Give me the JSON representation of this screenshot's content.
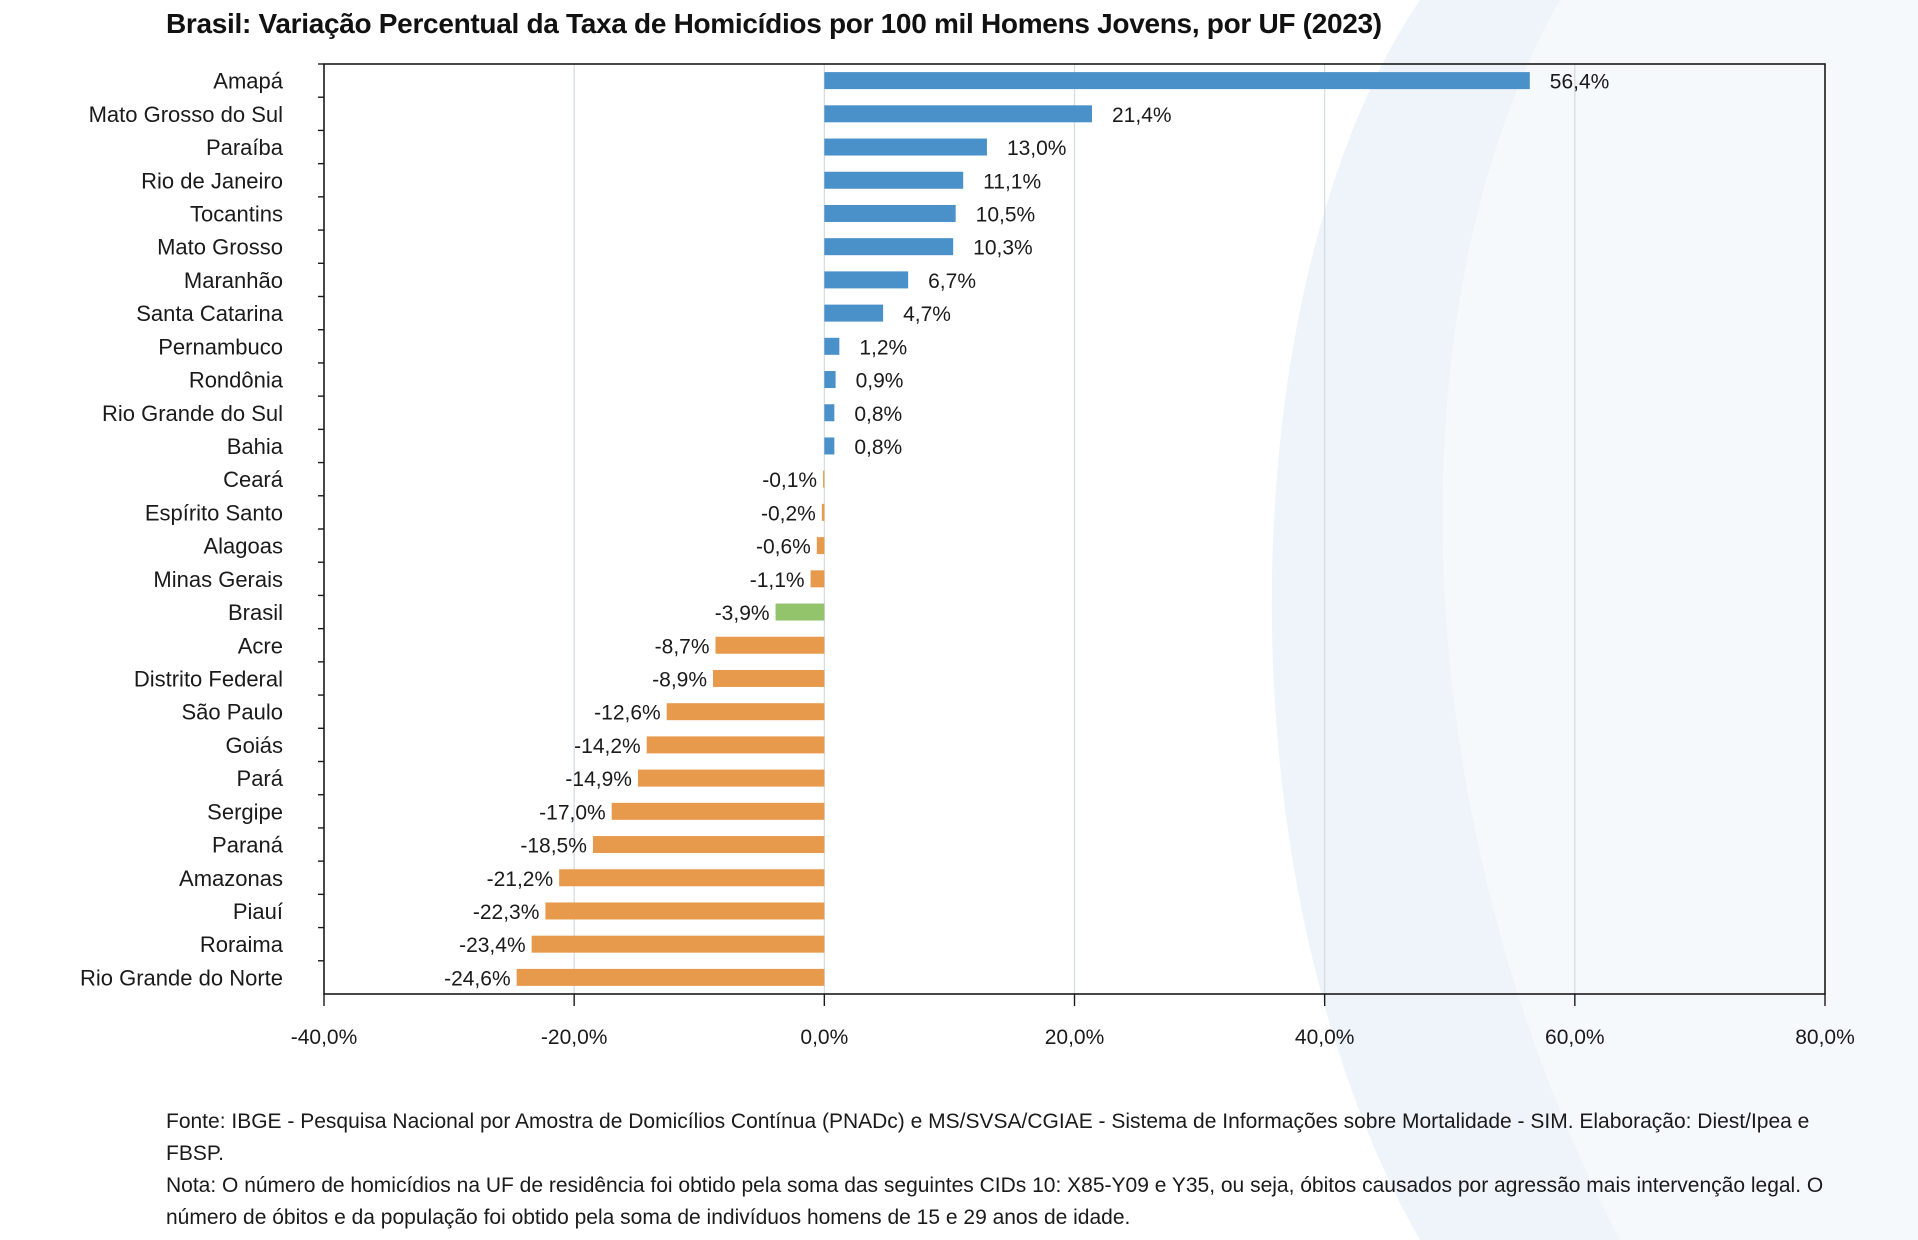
{
  "title": "Brasil: Variação Percentual da Taxa de Homicídios por 100 mil Homens Jovens, por UF (2023)",
  "chart_data": {
    "type": "bar",
    "orientation": "horizontal",
    "title": "Brasil: Variação Percentual da Taxa de Homicídios por 100 mil Homens Jovens, por UF (2023)",
    "xlabel": "",
    "ylabel": "",
    "xlim": [
      -40,
      80
    ],
    "xticks": [
      -40,
      -20,
      0,
      20,
      40,
      60,
      80
    ],
    "xtick_labels": [
      "-40,0%",
      "-20,0%",
      "0,0%",
      "20,0%",
      "40,0%",
      "60,0%",
      "80,0%"
    ],
    "grid": true,
    "legend": "none",
    "colors": {
      "positive": "#4a90c9",
      "negative": "#e89a4c",
      "national": "#93c36b"
    },
    "categories": [
      "Amapá",
      "Mato Grosso do Sul",
      "Paraíba",
      "Rio de Janeiro",
      "Tocantins",
      "Mato Grosso",
      "Maranhão",
      "Santa Catarina",
      "Pernambuco",
      "Rondônia",
      "Rio Grande do Sul",
      "Bahia",
      "Ceará",
      "Espírito Santo",
      "Alagoas",
      "Minas Gerais",
      "Brasil",
      "Acre",
      "Distrito Federal",
      "São Paulo",
      "Goiás",
      "Pará",
      "Sergipe",
      "Paraná",
      "Amazonas",
      "Piauí",
      "Roraima",
      "Rio Grande do Norte"
    ],
    "values": [
      56.4,
      21.4,
      13.0,
      11.1,
      10.5,
      10.3,
      6.7,
      4.7,
      1.2,
      0.9,
      0.8,
      0.8,
      -0.1,
      -0.2,
      -0.6,
      -1.1,
      -3.9,
      -8.7,
      -8.9,
      -12.6,
      -14.2,
      -14.9,
      -17.0,
      -18.5,
      -21.2,
      -22.3,
      -23.4,
      -24.6
    ],
    "value_labels": [
      "56,4%",
      "21,4%",
      "13,0%",
      "11,1%",
      "10,5%",
      "10,3%",
      "6,7%",
      "4,7%",
      "1,2%",
      "0,9%",
      "0,8%",
      "0,8%",
      "-0,1%",
      "-0,2%",
      "-0,6%",
      "-1,1%",
      "-3,9%",
      "-8,7%",
      "-8,9%",
      "-12,6%",
      "-14,2%",
      "-14,9%",
      "-17,0%",
      "-18,5%",
      "-21,2%",
      "-22,3%",
      "-23,4%",
      "-24,6%"
    ],
    "highlight_category": "Brasil"
  },
  "footnote": {
    "source": "Fonte: IBGE - Pesquisa Nacional por Amostra de Domicílios Contínua (PNADc) e MS/SVSA/CGIAE - Sistema de Informações sobre Mortalidade - SIM. Elaboração: Diest/Ipea e FBSP.",
    "note": "Nota: O número de homicídios na UF de residência foi obtido pela soma das seguintes CIDs 10: X85-Y09 e Y35, ou seja, óbitos causados por agressão mais intervenção legal. O número de óbitos e da população foi obtido pela soma de indivíduos homens de 15 e 29 anos de idade."
  }
}
